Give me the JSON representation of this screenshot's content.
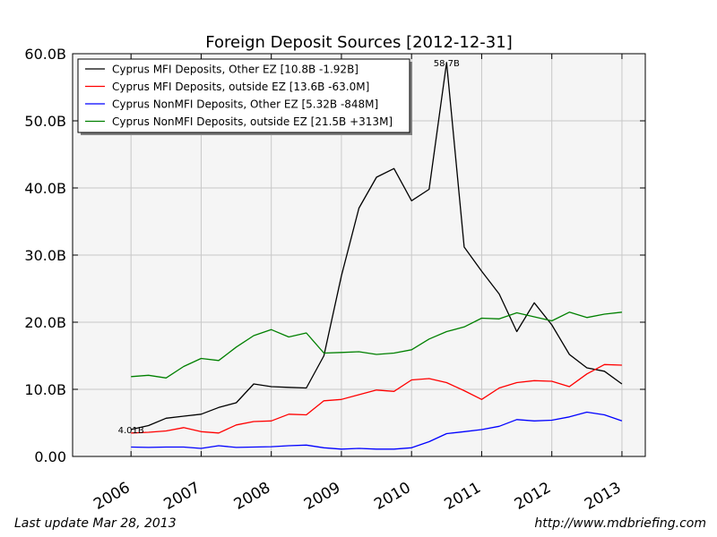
{
  "chart_data": {
    "type": "line",
    "title": "Foreign Deposit Sources  [2012-12-31]",
    "xlabel": "",
    "ylabel": "",
    "xlim": [
      2005.167,
      2013.333
    ],
    "ylim": [
      0,
      60
    ],
    "grid": true,
    "legend_position": "top-left",
    "x_ticks": [
      2006,
      2007,
      2008,
      2009,
      2010,
      2011,
      2012,
      2013
    ],
    "x_tick_labels": [
      "2006",
      "2007",
      "2008",
      "2009",
      "2010",
      "2011",
      "2012",
      "2013"
    ],
    "y_ticks": [
      0,
      10,
      20,
      30,
      40,
      50,
      60
    ],
    "y_tick_labels": [
      "0.00",
      "10.0B",
      "20.0B",
      "30.0B",
      "40.0B",
      "50.0B",
      "60.0B"
    ],
    "x": [
      2006.0,
      2006.25,
      2006.5,
      2006.75,
      2007.0,
      2007.25,
      2007.5,
      2007.75,
      2008.0,
      2008.25,
      2008.5,
      2008.75,
      2009.0,
      2009.25,
      2009.5,
      2009.75,
      2010.0,
      2010.25,
      2010.5,
      2010.75,
      2011.0,
      2011.25,
      2011.5,
      2011.75,
      2012.0,
      2012.25,
      2012.5,
      2012.75,
      2013.0
    ],
    "series": [
      {
        "name": "Cyprus MFI Deposits, Other EZ [10.8B -1.92B]",
        "color": "#000000",
        "values": [
          4.01,
          4.6,
          5.7,
          6.0,
          6.3,
          7.3,
          8.0,
          10.8,
          10.4,
          10.3,
          10.2,
          15.0,
          26.9,
          37.0,
          41.6,
          42.9,
          38.1,
          39.8,
          58.7,
          31.2,
          27.6,
          24.2,
          18.6,
          22.9,
          19.6,
          15.2,
          13.2,
          12.7,
          10.8
        ]
      },
      {
        "name": "Cyprus MFI Deposits, outside EZ [13.6B -63.0M]",
        "color": "#ff0000",
        "values": [
          3.5,
          3.6,
          3.8,
          4.3,
          3.7,
          3.5,
          4.7,
          5.2,
          5.3,
          6.3,
          6.2,
          8.3,
          8.5,
          9.2,
          9.9,
          9.7,
          11.4,
          11.6,
          11.0,
          9.8,
          8.5,
          10.2,
          11.0,
          11.3,
          11.2,
          10.4,
          12.3,
          13.7,
          13.6
        ]
      },
      {
        "name": "Cyprus NonMFI Deposits, Other EZ [5.32B -848M]",
        "color": "#0000ff",
        "values": [
          1.4,
          1.35,
          1.4,
          1.4,
          1.2,
          1.6,
          1.35,
          1.4,
          1.45,
          1.6,
          1.7,
          1.3,
          1.1,
          1.2,
          1.1,
          1.1,
          1.3,
          2.2,
          3.4,
          3.7,
          4.0,
          4.5,
          5.5,
          5.3,
          5.4,
          5.9,
          6.6,
          6.2,
          5.3
        ]
      },
      {
        "name": "Cyprus NonMFI Deposits, outside EZ [21.5B +313M]",
        "color": "#008000",
        "values": [
          11.9,
          12.1,
          11.7,
          13.4,
          14.6,
          14.3,
          16.3,
          18.0,
          18.9,
          17.8,
          18.4,
          15.4,
          15.5,
          15.6,
          15.2,
          15.4,
          15.9,
          17.5,
          18.6,
          19.3,
          20.6,
          20.5,
          21.4,
          20.8,
          20.2,
          21.5,
          20.7,
          21.2,
          21.5
        ]
      }
    ],
    "annotations": [
      {
        "text": "4.01B",
        "x": 2006.0,
        "y": 4.01
      },
      {
        "text": "58.7B",
        "x": 2010.5,
        "y": 58.7
      }
    ]
  },
  "footer": {
    "last_update": "Last update Mar 28, 2013",
    "source_url": "http://www.mdbriefing.com"
  }
}
